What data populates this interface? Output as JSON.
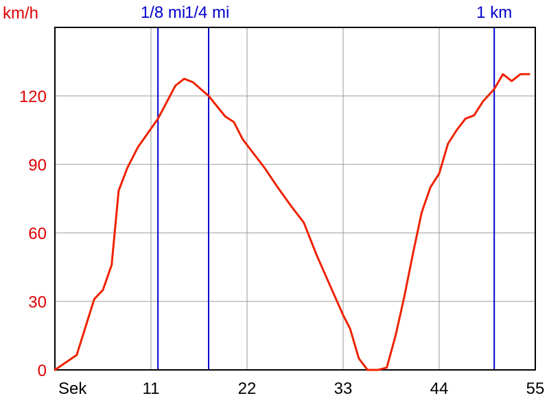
{
  "chart_data": {
    "type": "line",
    "ylabel": "km/h",
    "xlabel": "Sek",
    "xlim": [
      0,
      55
    ],
    "ylim": [
      0,
      150
    ],
    "x_ticks": [
      11,
      22,
      33,
      44,
      55
    ],
    "y_ticks": [
      0,
      30,
      60,
      90,
      120
    ],
    "colors": {
      "series": "#ee2200",
      "markers": "#0000cc",
      "ytext": "#e00000"
    },
    "markers": [
      {
        "label": "1/8 mi",
        "x": 11.8
      },
      {
        "label": "1/4 mi",
        "x": 17.6
      },
      {
        "label": "1 km",
        "x": 50.3
      }
    ],
    "series": [
      {
        "x": [
          0,
          2.5,
          4.5,
          5.5,
          6.5,
          7.3,
          8.3,
          9.5,
          11.8,
          13.8,
          14.8,
          15.8,
          17.6,
          19.5,
          20.5,
          21.5,
          22.5,
          24,
          25.5,
          27,
          28.5,
          30,
          31.5,
          33,
          33.8,
          34.8,
          35.8,
          37,
          38,
          39,
          40,
          41,
          42,
          43,
          44,
          45,
          46,
          47,
          48,
          49,
          50.3,
          51.3,
          52.3,
          53.3,
          54.3
        ],
        "y": [
          0,
          6.5,
          31,
          35,
          46,
          78.5,
          88.5,
          97.5,
          110,
          124.5,
          127.5,
          126,
          120,
          111,
          108.5,
          101,
          96,
          88.5,
          80,
          72,
          64.5,
          50,
          37,
          24,
          18,
          5,
          0,
          0,
          1,
          15,
          32,
          51,
          69,
          80,
          86,
          99,
          105,
          110,
          111.5,
          117.5,
          123,
          129.5,
          126.5,
          129.5,
          129.5
        ]
      }
    ]
  }
}
